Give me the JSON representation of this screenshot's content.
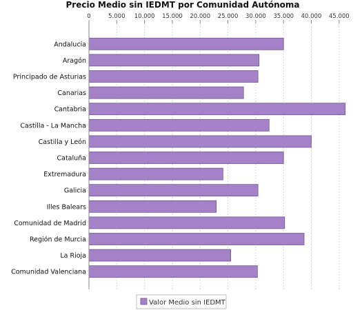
{
  "chart_data": {
    "type": "bar",
    "orientation": "horizontal",
    "title": "Precio Medio sin IEDMT por Comunidad Autónoma",
    "xlabel": "",
    "ylabel": "",
    "categories": [
      "Andalucía",
      "Aragón",
      "Principado de Asturias",
      "Canarias",
      "Cantabria",
      "Castilla - La Mancha",
      "Castilla y León",
      "Cataluña",
      "Extremadura",
      "Galicia",
      "Illes Balears",
      "Comunidad de Madrid",
      "Región de Murcia",
      "La Rioja",
      "Comunidad Valenciana"
    ],
    "series": [
      {
        "name": "Valor Medio sin IEDMT",
        "values": [
          35000,
          30600,
          30400,
          27800,
          46100,
          32400,
          40000,
          35000,
          24100,
          30400,
          22900,
          35200,
          38700,
          25500,
          30300
        ]
      }
    ],
    "xlim": [
      0,
      48000
    ],
    "xticks": [
      0,
      5000,
      10000,
      15000,
      20000,
      25000,
      30000,
      35000,
      40000,
      45000
    ],
    "xtick_labels": [
      "0",
      "5.000",
      "10.000",
      "15.000",
      "20.000",
      "25.000",
      "30.000",
      "35.000",
      "40.000",
      "45.000"
    ],
    "grid": true,
    "legend": "bottom",
    "colors": {
      "bar_fill": "#a582c8",
      "bar_stroke": "#6f5591",
      "grid": "#d8d8d8",
      "axis": "#888888"
    }
  }
}
